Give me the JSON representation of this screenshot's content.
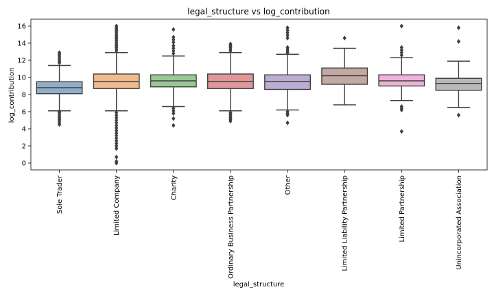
{
  "chart_data": {
    "type": "box",
    "title": "legal_structure vs log_contribution",
    "xlabel": "legal_structure",
    "ylabel": "log_contribution",
    "ylim": [
      -0.8,
      16.8
    ],
    "yticks": [
      0,
      2,
      4,
      6,
      8,
      10,
      12,
      14,
      16
    ],
    "grid": false,
    "categories": [
      "Sole Trader",
      "Limited Company",
      "Charity",
      "Ordinary Business Partnership",
      "Other",
      "Limited Liability Partnership",
      "Limited Partnership",
      "Unincorporated Association"
    ],
    "colors": [
      "#91aec8",
      "#f2bb8d",
      "#99c894",
      "#e0979a",
      "#beadd3",
      "#c3a9a3",
      "#eeb3d9",
      "#b9b9b9"
    ],
    "boxes": [
      {
        "q1": 8.1,
        "median": 8.8,
        "q3": 9.5,
        "whisker_low": 6.1,
        "whisker_high": 11.4,
        "outliers": [
          4.5,
          4.7,
          4.9,
          5.1,
          5.3,
          5.5,
          5.7,
          5.9,
          6.0,
          11.7,
          11.9,
          12.1,
          12.3,
          12.5,
          12.7,
          12.9
        ]
      },
      {
        "q1": 8.7,
        "median": 9.5,
        "q3": 10.4,
        "whisker_low": 6.1,
        "whisker_high": 12.9,
        "outliers": [
          0.0,
          0.2,
          0.7,
          1.7,
          2.0,
          2.3,
          2.6,
          2.9,
          3.2,
          3.5,
          3.8,
          4.1,
          4.4,
          4.7,
          5.0,
          5.3,
          5.6,
          5.9,
          13.1,
          13.3,
          13.5,
          13.7,
          13.9,
          14.1,
          14.3,
          14.5,
          14.7,
          14.9,
          15.1,
          15.3,
          15.5,
          15.7,
          15.9,
          16.0
        ]
      },
      {
        "q1": 8.9,
        "median": 9.6,
        "q3": 10.3,
        "whisker_low": 6.6,
        "whisker_high": 12.5,
        "outliers": [
          4.4,
          5.2,
          5.8,
          6.1,
          6.4,
          12.8,
          13.1,
          13.4,
          13.7,
          14.1,
          14.4,
          14.7,
          15.6
        ]
      },
      {
        "q1": 8.7,
        "median": 9.5,
        "q3": 10.4,
        "whisker_low": 6.1,
        "whisker_high": 12.9,
        "outliers": [
          4.9,
          5.1,
          5.3,
          5.5,
          5.7,
          5.9,
          13.1,
          13.3,
          13.5,
          13.7,
          13.9
        ]
      },
      {
        "q1": 8.6,
        "median": 9.5,
        "q3": 10.3,
        "whisker_low": 6.2,
        "whisker_high": 12.7,
        "outliers": [
          4.7,
          5.6,
          5.8,
          6.0,
          12.9,
          13.1,
          13.3,
          13.5,
          14.6,
          14.9,
          15.2,
          15.5,
          15.8
        ]
      },
      {
        "q1": 9.2,
        "median": 10.2,
        "q3": 11.1,
        "whisker_low": 6.8,
        "whisker_high": 13.4,
        "outliers": [
          14.6
        ]
      },
      {
        "q1": 9.0,
        "median": 9.6,
        "q3": 10.3,
        "whisker_low": 7.3,
        "whisker_high": 12.3,
        "outliers": [
          3.7,
          6.2,
          6.4,
          6.6,
          12.6,
          12.9,
          13.2,
          13.5,
          16.0
        ]
      },
      {
        "q1": 8.5,
        "median": 9.3,
        "q3": 9.9,
        "whisker_low": 6.5,
        "whisker_high": 11.9,
        "outliers": [
          5.6,
          14.2,
          15.8
        ]
      }
    ]
  }
}
